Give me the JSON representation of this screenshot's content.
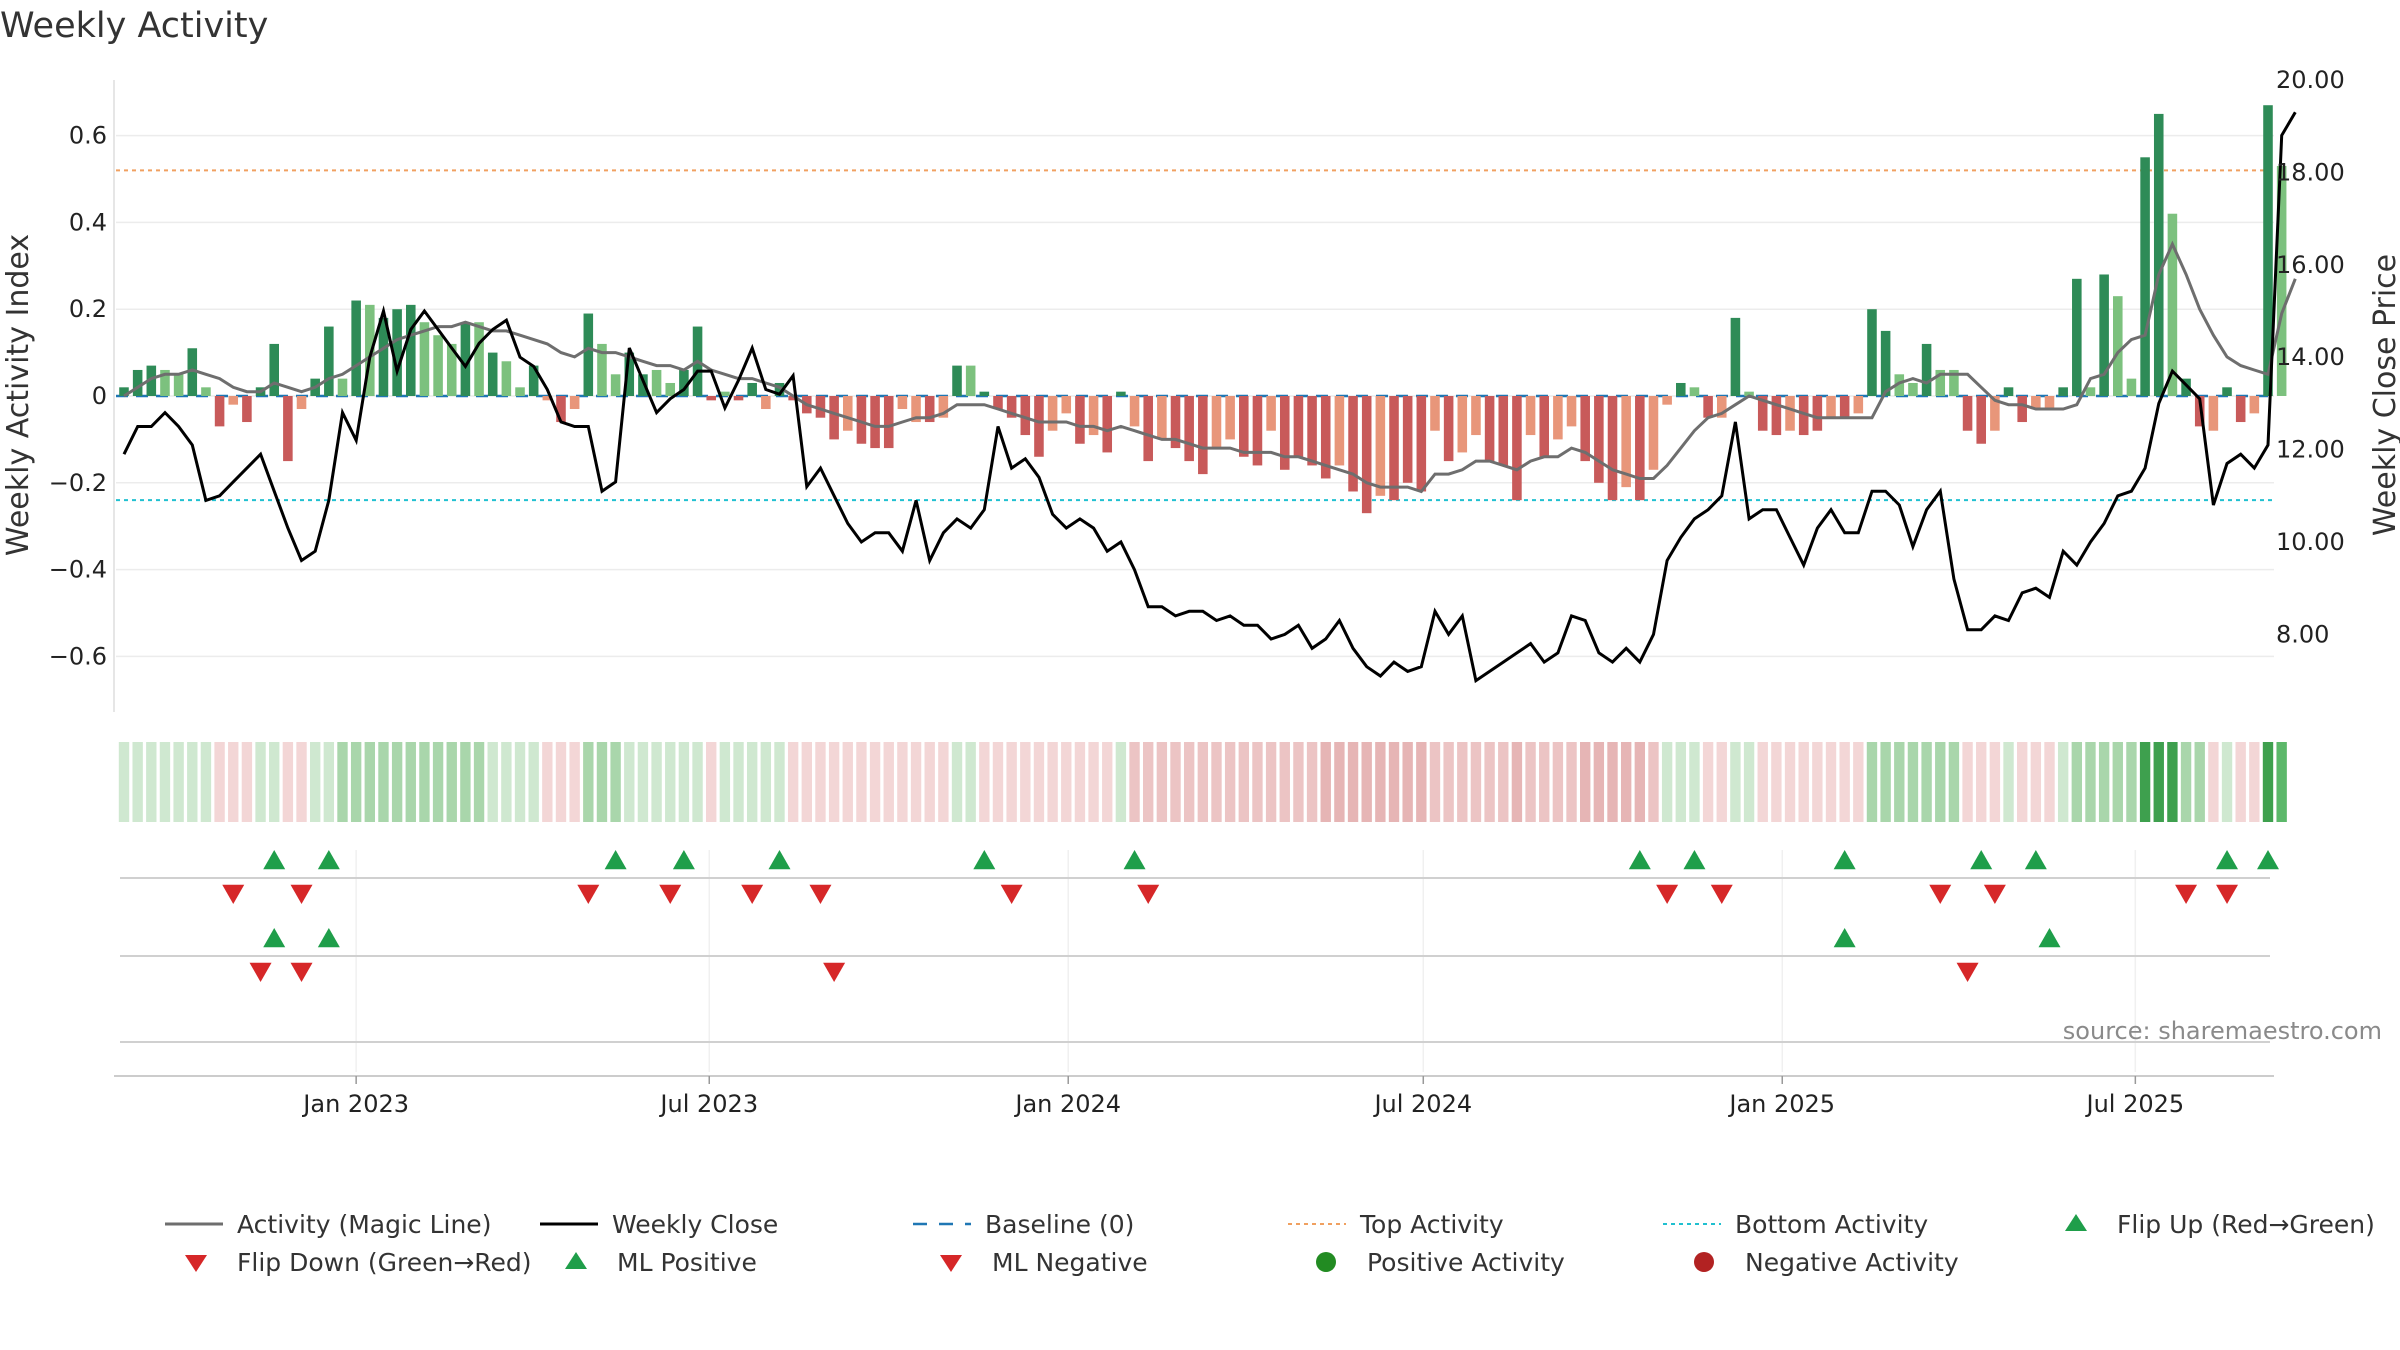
{
  "title": "Weekly Activity",
  "source": "source: sharemaestro.com",
  "chart_data": {
    "type": "bar",
    "title": "Weekly Activity",
    "ylabel": "Weekly Activity Index",
    "y2label": "Weekly Close Price",
    "ylim": [
      -0.72,
      0.72
    ],
    "y2lim": [
      6.5,
      20.0
    ],
    "yticks": [
      0.6,
      0.4,
      0.2,
      0,
      -0.2,
      -0.4,
      -0.6
    ],
    "yticklabels": [
      "0.6",
      "0.4",
      "0.2",
      "0",
      "−0.2",
      "−0.4",
      "−0.6"
    ],
    "y2ticks": [
      20,
      18,
      16,
      14,
      12,
      10,
      8
    ],
    "y2ticklabels": [
      "20.00",
      "18.00",
      "16.00",
      "14.00",
      "12.00",
      "10.00",
      "8.00"
    ],
    "x_start": "2022-09-04",
    "weeks": 158,
    "xticks": [
      "2023-01-01",
      "2023-07-01",
      "2024-01-01",
      "2024-07-01",
      "2025-01-01",
      "2025-07-01"
    ],
    "xticklabels": [
      "Jan 2023",
      "Jul 2023",
      "Jan 2024",
      "Jul 2024",
      "Jan 2025",
      "Jul 2025"
    ],
    "top_activity": 0.52,
    "bottom_activity": -0.24,
    "baseline": 0,
    "activity": [
      0.02,
      0.06,
      0.07,
      0.06,
      0.05,
      0.11,
      0.02,
      -0.07,
      -0.02,
      -0.06,
      0.02,
      0.12,
      -0.15,
      -0.03,
      0.04,
      0.16,
      0.04,
      0.22,
      0.21,
      0.18,
      0.2,
      0.21,
      0.17,
      0.14,
      0.12,
      0.17,
      0.17,
      0.1,
      0.08,
      0.02,
      0.07,
      -0.01,
      -0.06,
      -0.03,
      0.19,
      0.12,
      0.05,
      0.1,
      0.05,
      0.06,
      0.03,
      0.06,
      0.16,
      -0.01,
      0.01,
      -0.01,
      0.03,
      -0.03,
      0.03,
      -0.01,
      -0.04,
      -0.05,
      -0.1,
      -0.08,
      -0.11,
      -0.12,
      -0.12,
      -0.03,
      -0.06,
      -0.06,
      -0.05,
      0.07,
      0.07,
      0.01,
      -0.03,
      -0.05,
      -0.09,
      -0.14,
      -0.08,
      -0.04,
      -0.11,
      -0.09,
      -0.13,
      0.01,
      -0.07,
      -0.15,
      -0.1,
      -0.12,
      -0.15,
      -0.18,
      -0.12,
      -0.1,
      -0.14,
      -0.16,
      -0.08,
      -0.17,
      -0.14,
      -0.16,
      -0.19,
      -0.16,
      -0.22,
      -0.27,
      -0.23,
      -0.24,
      -0.2,
      -0.22,
      -0.08,
      -0.15,
      -0.13,
      -0.09,
      -0.15,
      -0.16,
      -0.24,
      -0.09,
      -0.14,
      -0.1,
      -0.07,
      -0.15,
      -0.2,
      -0.24,
      -0.21,
      -0.24,
      -0.17,
      -0.02,
      0.03,
      0.02,
      -0.05,
      -0.05,
      0.18,
      0.01,
      -0.08,
      -0.09,
      -0.08,
      -0.09,
      -0.08,
      -0.05,
      -0.05,
      -0.04,
      0.2,
      0.15,
      0.05,
      0.03,
      0.12,
      0.06,
      0.06,
      -0.08,
      -0.11,
      -0.08,
      0.02,
      -0.06,
      -0.03,
      -0.03,
      0.02,
      0.27,
      0.02,
      0.28,
      0.23,
      0.04,
      0.55,
      0.65,
      0.42,
      0.04,
      -0.07,
      -0.08,
      0.02,
      -0.06,
      -0.04,
      0.67,
      0.53
    ],
    "activity_colors": [
      "#2e8b57",
      "#2e8b57",
      "#2e8b57",
      "#7cc17e",
      "#7cc17e",
      "#2e8b57",
      "#7cc17e",
      "#c85a5a",
      "#e8967a",
      "#c85a5a",
      "#2e8b57",
      "#2e8b57",
      "#c85a5a",
      "#e8967a",
      "#2e8b57",
      "#2e8b57",
      "#7cc17e",
      "#2e8b57",
      "#7cc17e",
      "#2e8b57",
      "#2e8b57",
      "#2e8b57",
      "#7cc17e",
      "#7cc17e",
      "#7cc17e",
      "#2e8b57",
      "#7cc17e",
      "#2e8b57",
      "#7cc17e",
      "#7cc17e",
      "#2e8b57",
      "#e8967a",
      "#c85a5a",
      "#e8967a",
      "#2e8b57",
      "#7cc17e",
      "#7cc17e",
      "#2e8b57",
      "#2e8b57",
      "#7cc17e",
      "#7cc17e",
      "#2e8b57",
      "#2e8b57",
      "#c85a5a",
      "#7cc17e",
      "#c85a5a",
      "#2e8b57",
      "#e8967a",
      "#2e8b57",
      "#c85a5a",
      "#c85a5a",
      "#c85a5a",
      "#c85a5a",
      "#e8967a",
      "#c85a5a",
      "#c85a5a",
      "#c85a5a",
      "#e8967a",
      "#e8967a",
      "#c85a5a",
      "#e8967a",
      "#2e8b57",
      "#7cc17e",
      "#2e8b57",
      "#c85a5a",
      "#c85a5a",
      "#c85a5a",
      "#c85a5a",
      "#e8967a",
      "#e8967a",
      "#c85a5a",
      "#e8967a",
      "#c85a5a",
      "#2e8b57",
      "#e8967a",
      "#c85a5a",
      "#e8967a",
      "#c85a5a",
      "#c85a5a",
      "#c85a5a",
      "#e8967a",
      "#e8967a",
      "#c85a5a",
      "#c85a5a",
      "#e8967a",
      "#c85a5a",
      "#c85a5a",
      "#c85a5a",
      "#c85a5a",
      "#e8967a",
      "#c85a5a",
      "#c85a5a",
      "#e8967a",
      "#c85a5a",
      "#c85a5a",
      "#c85a5a",
      "#e8967a",
      "#c85a5a",
      "#e8967a",
      "#e8967a",
      "#c85a5a",
      "#c85a5a",
      "#c85a5a",
      "#e8967a",
      "#c85a5a",
      "#e8967a",
      "#e8967a",
      "#c85a5a",
      "#c85a5a",
      "#c85a5a",
      "#e8967a",
      "#c85a5a",
      "#e8967a",
      "#e8967a",
      "#2e8b57",
      "#7cc17e",
      "#c85a5a",
      "#e8967a",
      "#2e8b57",
      "#7cc17e",
      "#c85a5a",
      "#c85a5a",
      "#e8967a",
      "#c85a5a",
      "#c85a5a",
      "#e8967a",
      "#c85a5a",
      "#e8967a",
      "#2e8b57",
      "#2e8b57",
      "#7cc17e",
      "#7cc17e",
      "#2e8b57",
      "#7cc17e",
      "#7cc17e",
      "#c85a5a",
      "#c85a5a",
      "#e8967a",
      "#2e8b57",
      "#c85a5a",
      "#e8967a",
      "#e8967a",
      "#2e8b57",
      "#2e8b57",
      "#7cc17e",
      "#2e8b57",
      "#7cc17e",
      "#7cc17e",
      "#2e8b57",
      "#2e8b57",
      "#7cc17e",
      "#2e8b57",
      "#c85a5a",
      "#e8967a",
      "#2e8b57",
      "#c85a5a",
      "#e8967a",
      "#2e8b57",
      "#7cc17e"
    ],
    "magic_line": [
      0.0,
      0.02,
      0.04,
      0.05,
      0.05,
      0.06,
      0.05,
      0.04,
      0.02,
      0.01,
      0.01,
      0.03,
      0.02,
      0.01,
      0.02,
      0.04,
      0.05,
      0.07,
      0.09,
      0.11,
      0.13,
      0.14,
      0.15,
      0.16,
      0.16,
      0.17,
      0.16,
      0.15,
      0.15,
      0.14,
      0.13,
      0.12,
      0.1,
      0.09,
      0.11,
      0.1,
      0.1,
      0.09,
      0.08,
      0.07,
      0.07,
      0.06,
      0.08,
      0.06,
      0.05,
      0.04,
      0.04,
      0.03,
      0.02,
      0.0,
      -0.02,
      -0.03,
      -0.04,
      -0.05,
      -0.06,
      -0.07,
      -0.07,
      -0.06,
      -0.05,
      -0.05,
      -0.04,
      -0.02,
      -0.02,
      -0.02,
      -0.03,
      -0.04,
      -0.05,
      -0.06,
      -0.06,
      -0.06,
      -0.07,
      -0.07,
      -0.08,
      -0.07,
      -0.08,
      -0.09,
      -0.1,
      -0.1,
      -0.11,
      -0.12,
      -0.12,
      -0.12,
      -0.13,
      -0.13,
      -0.13,
      -0.14,
      -0.14,
      -0.15,
      -0.16,
      -0.17,
      -0.18,
      -0.2,
      -0.21,
      -0.21,
      -0.21,
      -0.22,
      -0.18,
      -0.18,
      -0.17,
      -0.15,
      -0.15,
      -0.16,
      -0.17,
      -0.15,
      -0.14,
      -0.14,
      -0.12,
      -0.13,
      -0.15,
      -0.17,
      -0.18,
      -0.19,
      -0.19,
      -0.16,
      -0.12,
      -0.08,
      -0.05,
      -0.04,
      -0.02,
      0.0,
      -0.01,
      -0.02,
      -0.03,
      -0.04,
      -0.05,
      -0.05,
      -0.05,
      -0.05,
      -0.05,
      0.01,
      0.03,
      0.04,
      0.03,
      0.05,
      0.05,
      0.05,
      0.02,
      -0.01,
      -0.02,
      -0.02,
      -0.03,
      -0.03,
      -0.03,
      -0.02,
      0.04,
      0.05,
      0.1,
      0.13,
      0.14,
      0.28,
      0.35,
      0.28,
      0.2,
      0.14,
      0.09,
      0.07,
      0.06,
      0.05,
      0.19,
      0.27
    ],
    "weekly_close": [
      11.9,
      12.5,
      12.5,
      12.8,
      12.5,
      12.1,
      10.9,
      11.0,
      11.3,
      11.6,
      11.9,
      11.1,
      10.3,
      9.6,
      9.8,
      10.9,
      12.8,
      12.2,
      14.0,
      15.0,
      13.7,
      14.6,
      15.0,
      14.6,
      14.2,
      13.8,
      14.3,
      14.6,
      14.8,
      14.0,
      13.8,
      13.3,
      12.6,
      12.5,
      12.5,
      11.1,
      11.3,
      14.2,
      13.5,
      12.8,
      13.1,
      13.3,
      13.7,
      13.7,
      12.9,
      13.5,
      14.2,
      13.3,
      13.2,
      13.6,
      11.2,
      11.6,
      11.0,
      10.4,
      10.0,
      10.2,
      10.2,
      9.8,
      10.9,
      9.6,
      10.2,
      10.5,
      10.3,
      10.7,
      12.5,
      11.6,
      11.8,
      11.4,
      10.6,
      10.3,
      10.5,
      10.3,
      9.8,
      10.0,
      9.4,
      8.6,
      8.6,
      8.4,
      8.5,
      8.5,
      8.3,
      8.4,
      8.2,
      8.2,
      7.9,
      8.0,
      8.2,
      7.7,
      7.9,
      8.3,
      7.7,
      7.3,
      7.1,
      7.4,
      7.2,
      7.3,
      8.5,
      8.0,
      8.4,
      7.0,
      7.2,
      7.4,
      7.6,
      7.8,
      7.4,
      7.6,
      8.4,
      8.3,
      7.6,
      7.4,
      7.7,
      7.4,
      8.0,
      9.6,
      10.1,
      10.5,
      10.7,
      11.0,
      12.6,
      10.5,
      10.7,
      10.7,
      10.1,
      9.5,
      10.3,
      10.7,
      10.2,
      10.2,
      11.1,
      11.1,
      10.8,
      9.9,
      10.7,
      11.1,
      9.2,
      8.1,
      8.1,
      8.4,
      8.3,
      8.9,
      9.0,
      8.8,
      9.8,
      9.5,
      10.0,
      10.4,
      11.0,
      11.1,
      11.6,
      13.0,
      13.7,
      13.4,
      13.1,
      10.8,
      11.7,
      11.9,
      11.6,
      12.1,
      18.8,
      19.3
    ],
    "heat_strip": [
      "#cfe8d0",
      "#cfe8d0",
      "#cfe8d0",
      "#cfe8d0",
      "#cfe8d0",
      "#cfe8d0",
      "#cfe8d0",
      "#f3d6d6",
      "#f3d6d6",
      "#f3d6d6",
      "#cfe8d0",
      "#cfe8d0",
      "#f3d6d6",
      "#f3d6d6",
      "#cfe8d0",
      "#cfe8d0",
      "#a9d6ab",
      "#a9d6ab",
      "#a9d6ab",
      "#a9d6ab",
      "#a9d6ab",
      "#a9d6ab",
      "#a9d6ab",
      "#a9d6ab",
      "#a9d6ab",
      "#a9d6ab",
      "#a9d6ab",
      "#cfe8d0",
      "#cfe8d0",
      "#cfe8d0",
      "#cfe8d0",
      "#f3d6d6",
      "#f3d6d6",
      "#f3d6d6",
      "#a9d6ab",
      "#a9d6ab",
      "#a9d6ab",
      "#cfe8d0",
      "#cfe8d0",
      "#cfe8d0",
      "#cfe8d0",
      "#cfe8d0",
      "#cfe8d0",
      "#f3d6d6",
      "#cfe8d0",
      "#cfe8d0",
      "#cfe8d0",
      "#cfe8d0",
      "#cfe8d0",
      "#f3d6d6",
      "#f3d6d6",
      "#f3d6d6",
      "#f3d6d6",
      "#f3d6d6",
      "#f3d6d6",
      "#f3d6d6",
      "#f3d6d6",
      "#f3d6d6",
      "#f3d6d6",
      "#f3d6d6",
      "#f3d6d6",
      "#cfe8d0",
      "#cfe8d0",
      "#f3d6d6",
      "#f3d6d6",
      "#f3d6d6",
      "#f3d6d6",
      "#f3d6d6",
      "#f3d6d6",
      "#f3d6d6",
      "#f3d6d6",
      "#f3d6d6",
      "#f3d6d6",
      "#cfe8d0",
      "#ecc4c4",
      "#ecc4c4",
      "#ecc4c4",
      "#ecc4c4",
      "#ecc4c4",
      "#ecc4c4",
      "#ecc4c4",
      "#ecc4c4",
      "#ecc4c4",
      "#ecc4c4",
      "#ecc4c4",
      "#ecc4c4",
      "#ecc4c4",
      "#ecc4c4",
      "#e6b5b5",
      "#e6b5b5",
      "#e6b5b5",
      "#e6b5b5",
      "#e6b5b5",
      "#e6b5b5",
      "#e6b5b5",
      "#e6b5b5",
      "#ecc4c4",
      "#ecc4c4",
      "#ecc4c4",
      "#ecc4c4",
      "#ecc4c4",
      "#ecc4c4",
      "#e6b5b5",
      "#ecc4c4",
      "#ecc4c4",
      "#ecc4c4",
      "#ecc4c4",
      "#e6b5b5",
      "#e6b5b5",
      "#e6b5b5",
      "#e6b5b5",
      "#e6b5b5",
      "#ecc4c4",
      "#cfe8d0",
      "#cfe8d0",
      "#cfe8d0",
      "#f3d6d6",
      "#f3d6d6",
      "#cfe8d0",
      "#cfe8d0",
      "#f3d6d6",
      "#f3d6d6",
      "#f3d6d6",
      "#f3d6d6",
      "#f3d6d6",
      "#f3d6d6",
      "#f3d6d6",
      "#f3d6d6",
      "#a9d6ab",
      "#a9d6ab",
      "#a9d6ab",
      "#a9d6ab",
      "#a9d6ab",
      "#a9d6ab",
      "#a9d6ab",
      "#f3d6d6",
      "#f3d6d6",
      "#f3d6d6",
      "#cfe8d0",
      "#f3d6d6",
      "#f3d6d6",
      "#f3d6d6",
      "#cfe8d0",
      "#a9d6ab",
      "#a9d6ab",
      "#a9d6ab",
      "#a9d6ab",
      "#a9d6ab",
      "#3ea04e",
      "#3ea04e",
      "#3ea04e",
      "#a9d6ab",
      "#a9d6ab",
      "#f3d6d6",
      "#cfe8d0",
      "#f3d6d6",
      "#f3d6d6",
      "#3ea04e",
      "#5cb86a"
    ],
    "flip_up": [
      11,
      15,
      36,
      41,
      48,
      63,
      74,
      111,
      115,
      126,
      136,
      140,
      154,
      157
    ],
    "flip_down": [
      8,
      13,
      34,
      40,
      46,
      51,
      65,
      75,
      113,
      117,
      133,
      137,
      151,
      154
    ],
    "ml_positive": [
      11,
      15,
      126,
      141
    ],
    "ml_negative": [
      10,
      13,
      52,
      135
    ],
    "legend": [
      {
        "label": "Activity (Magic Line)",
        "symbol": "line",
        "color": "#6e6e6e"
      },
      {
        "label": "Weekly Close",
        "symbol": "line",
        "color": "#000000"
      },
      {
        "label": "Baseline (0)",
        "symbol": "dashed",
        "color": "#1f77b4"
      },
      {
        "label": "Top Activity",
        "symbol": "dotted",
        "color": "#f0a060"
      },
      {
        "label": "Bottom Activity",
        "symbol": "dotted",
        "color": "#20c0d0"
      },
      {
        "label": "Flip Up (Red→Green)",
        "symbol": "tri-up",
        "color": "#1f9e4a"
      },
      {
        "label": "Flip Down (Green→Red)",
        "symbol": "tri-down",
        "color": "#d62728"
      },
      {
        "label": "ML Positive",
        "symbol": "tri-up",
        "color": "#1f9e4a"
      },
      {
        "label": "ML Negative",
        "symbol": "tri-down",
        "color": "#d62728"
      },
      {
        "label": "Positive Activity",
        "symbol": "circle",
        "color": "#228b22"
      },
      {
        "label": "Negative Activity",
        "symbol": "circle",
        "color": "#b22222"
      }
    ]
  }
}
